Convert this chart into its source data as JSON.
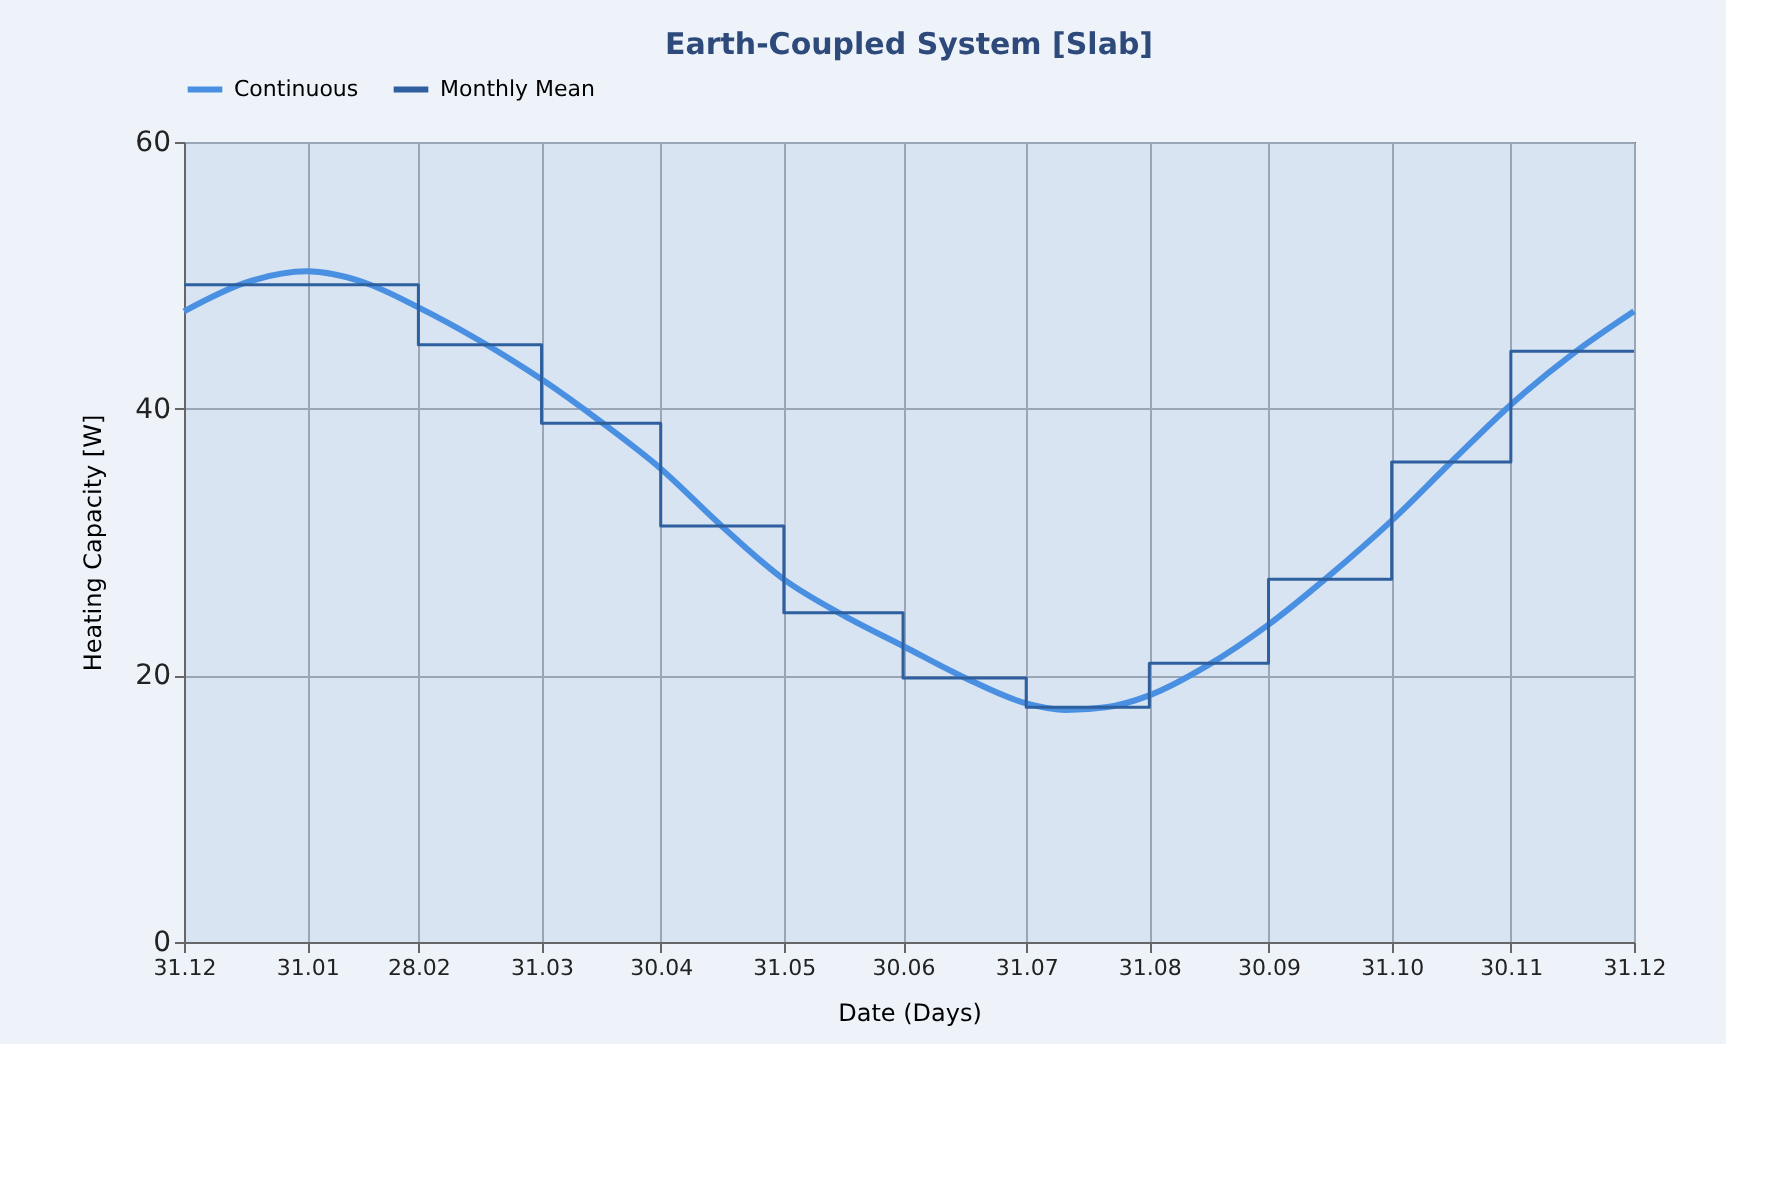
{
  "chart_data": {
    "type": "line",
    "title": "Earth-Coupled System [Slab]",
    "xlabel": "Date (Days)",
    "ylabel": "Heating Capacity [W]",
    "xlim": [
      "2001-12-31",
      "2002-12-31"
    ],
    "xticks": [
      {
        "value": "2001-12-31",
        "label": "31.12"
      },
      {
        "value": "2002-01-31",
        "label": "31.01"
      },
      {
        "value": "2002-02-28",
        "label": "28.02"
      },
      {
        "value": "2002-03-31",
        "label": "31.03"
      },
      {
        "value": "2002-04-30",
        "label": "30.04"
      },
      {
        "value": "2002-05-31",
        "label": "31.05"
      },
      {
        "value": "2002-06-30",
        "label": "30.06"
      },
      {
        "value": "2002-07-31",
        "label": "31.07"
      },
      {
        "value": "2002-08-31",
        "label": "31.08"
      },
      {
        "value": "2002-09-30",
        "label": "30.09"
      },
      {
        "value": "2002-10-31",
        "label": "31.10"
      },
      {
        "value": "2002-11-30",
        "label": "30.11"
      },
      {
        "value": "2002-12-31",
        "label": "31.12"
      }
    ],
    "ylim": [
      0,
      60
    ],
    "yticks": [
      0,
      20,
      40,
      60
    ],
    "grid": true,
    "legend": "top left",
    "marker": "none",
    "series": [
      {
        "name": "Continuous",
        "color": "#4a90e2",
        "x": [
          "2001-12-31",
          "2002-01-15",
          "2002-01-31",
          "2002-02-14",
          "2002-02-28",
          "2002-03-16",
          "2002-03-31",
          "2002-04-15",
          "2002-04-30",
          "2002-05-15",
          "2002-05-31",
          "2002-06-15",
          "2002-06-30",
          "2002-07-15",
          "2002-07-31",
          "2002-08-10",
          "2002-08-20",
          "2002-08-31",
          "2002-09-15",
          "2002-09-30",
          "2002-10-15",
          "2002-10-31",
          "2002-11-15",
          "2002-11-30",
          "2002-12-16",
          "2002-12-31"
        ],
        "values": [
          47.3,
          49.4,
          50.3,
          49.5,
          47.6,
          45.0,
          42.2,
          39.0,
          35.5,
          31.3,
          27.2,
          24.5,
          22.2,
          19.9,
          17.9,
          17.4,
          17.6,
          18.5,
          20.8,
          23.8,
          27.4,
          31.6,
          36.0,
          40.3,
          44.2,
          47.3
        ]
      },
      {
        "name": "Monthly Mean",
        "type": "step",
        "color": "#2e5f9e",
        "x": [
          "2001-12-31",
          "2002-01-31",
          "2002-02-28",
          "2002-03-31",
          "2002-04-30",
          "2002-05-31",
          "2002-06-30",
          "2002-07-31",
          "2002-08-31",
          "2002-09-30",
          "2002-10-31",
          "2002-11-30",
          "2002-12-31"
        ],
        "values": [
          49.3,
          49.3,
          44.8,
          38.9,
          31.2,
          24.7,
          19.8,
          17.6,
          20.9,
          27.2,
          36.0,
          44.3,
          44.3
        ]
      }
    ]
  }
}
